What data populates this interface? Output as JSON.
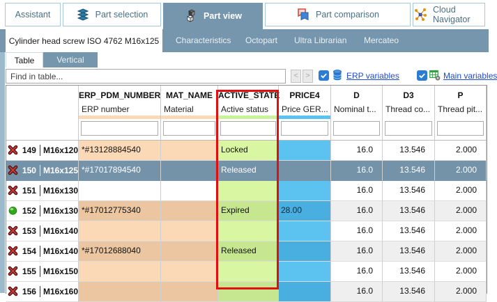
{
  "tabs": [
    {
      "label": "Assistant",
      "icon": "none",
      "active": false
    },
    {
      "label": "Part selection",
      "icon": "layers-icon",
      "active": false
    },
    {
      "label": "Part view",
      "icon": "cubes-icon",
      "active": true
    },
    {
      "label": "Part comparison",
      "icon": "compare-flags-icon",
      "active": false
    },
    {
      "label": "Cloud Navigator",
      "icon": "network-icon",
      "active": false
    }
  ],
  "subnav": {
    "active_label": "Cylinder head screw ISO 4762 M16x125",
    "items": [
      "Characteristics",
      "Octopart",
      "Ultra Librarian",
      "Mercateo"
    ]
  },
  "view_tabs": {
    "table_label": "Table",
    "vertical_label": "Vertical"
  },
  "toolbar": {
    "find_placeholder": "Find in table...",
    "prev_label": "<",
    "next_label": ">",
    "erp_variables_label": "ERP variables",
    "erp_variables_checked": true,
    "main_variables_label": "Main variables",
    "main_variables_checked": true
  },
  "table": {
    "columns": [
      {
        "key": "",
        "label": "",
        "sub": "",
        "bar": "none",
        "width": 104,
        "filter": false
      },
      {
        "key": "ERP_PDM_NUMBER",
        "label": "ERP_PDM_NUMBER",
        "sub": "ERP number",
        "bar": "peach",
        "width": 118,
        "filter": true
      },
      {
        "key": "MAT_NAME",
        "label": "MAT_NAME",
        "sub": "Material",
        "bar": "peach",
        "width": 82,
        "filter": true
      },
      {
        "key": "ACTIVE_STATE",
        "label": "ACTIVE_STATE",
        "sub": "Active status",
        "bar": "green",
        "width": 87,
        "filter": true
      },
      {
        "key": "PRICE4",
        "label": "PRICE4",
        "sub": "Price GER...",
        "bar": "blue",
        "width": 75,
        "filter": true
      },
      {
        "key": "D",
        "label": "D",
        "sub": "Nominal t...",
        "bar": "none",
        "width": 74,
        "filter": true
      },
      {
        "key": "D3",
        "label": "D3",
        "sub": "Thread co...",
        "bar": "none",
        "width": 75,
        "filter": true
      },
      {
        "key": "P",
        "label": "P",
        "sub": "Thread pit...",
        "bar": "none",
        "width": 74,
        "filter": true
      }
    ],
    "rows": [
      {
        "num": "149",
        "name": "M16x120",
        "icon": "blocked",
        "erp": "*#13128884540",
        "mat": "",
        "active": "Locked",
        "price": "",
        "d": "16.0",
        "d3": "13.546",
        "p": "2.000",
        "shade": "light",
        "selected": false
      },
      {
        "num": "150",
        "name": "M16x125",
        "icon": "blocked",
        "erp": "*#17017894540",
        "mat": "",
        "active": "Released",
        "price": "",
        "d": "16.0",
        "d3": "13.546",
        "p": "2.000",
        "shade": "dark",
        "selected": true
      },
      {
        "num": "151",
        "name": "M16x130",
        "icon": "blocked",
        "erp": "",
        "mat": "",
        "active": "",
        "price": "",
        "d": "16.0",
        "d3": "13.546",
        "p": "2.000",
        "shade": "plain",
        "selected": false
      },
      {
        "num": "152",
        "name": "M16x130",
        "icon": "active",
        "erp": "*#17012775340",
        "mat": "",
        "active": "Expired",
        "price": "28.00",
        "d": "16.0",
        "d3": "13.546",
        "p": "2.000",
        "shade": "dark",
        "selected": false
      },
      {
        "num": "153",
        "name": "M16x140",
        "icon": "blocked",
        "erp": "",
        "mat": "",
        "active": "",
        "price": "",
        "d": "16.0",
        "d3": "13.546",
        "p": "2.000",
        "shade": "light",
        "selected": false
      },
      {
        "num": "154",
        "name": "M16x140",
        "icon": "blocked",
        "erp": "*#17012688040",
        "mat": "",
        "active": "Released",
        "price": "",
        "d": "16.0",
        "d3": "13.546",
        "p": "2.000",
        "shade": "dark",
        "selected": false
      },
      {
        "num": "155",
        "name": "M16x150",
        "icon": "blocked",
        "erp": "",
        "mat": "",
        "active": "",
        "price": "",
        "d": "16.0",
        "d3": "13.546",
        "p": "2.000",
        "shade": "light",
        "selected": false
      },
      {
        "num": "156",
        "name": "M16x160",
        "icon": "blocked",
        "erp": "",
        "mat": "",
        "active": "",
        "price": "",
        "d": "16.0",
        "d3": "13.546",
        "p": "2.000",
        "shade": "dark",
        "selected": false
      }
    ]
  },
  "highlight": {
    "target_column": "ACTIVE_STATE"
  },
  "colors": {
    "steel": "#7596AD",
    "steel_selected": "#7492A8",
    "peach_light": "#FBD9B7",
    "peach_dark": "#ECC5A1",
    "green_light": "#D9F7A3",
    "green_dark": "#C6E78F",
    "blue_light": "#5CC3F0",
    "blue_dark": "#49AFE0",
    "gray_row": "#EFEFEF",
    "highlight_red": "#E01010",
    "link_blue": "#1E4BD2",
    "check_blue": "#2B7CD3",
    "strip_blue": "#9DB9CC",
    "tab_border": "#A9C7DA",
    "tab_text": "#4A6F85"
  }
}
